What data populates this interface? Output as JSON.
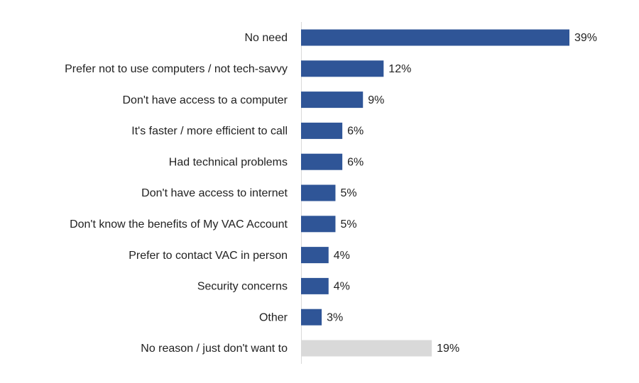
{
  "chart_data": {
    "type": "bar",
    "orientation": "horizontal",
    "categories": [
      "No need",
      "Prefer not to use computers / not tech-savvy",
      "Don't have access to a computer",
      "It's faster / more efficient to call",
      "Had technical problems",
      "Don't have access to internet",
      "Don't know the benefits of My VAC Account",
      "Prefer to contact VAC in person",
      "Security concerns",
      "Other",
      "No reason / just don't want to"
    ],
    "values": [
      39,
      12,
      9,
      6,
      6,
      5,
      5,
      4,
      4,
      3,
      19
    ],
    "value_labels": [
      "39%",
      "12%",
      "9%",
      "6%",
      "6%",
      "5%",
      "5%",
      "4%",
      "4%",
      "3%",
      "19%"
    ],
    "colors": [
      "#2f5597",
      "#2f5597",
      "#2f5597",
      "#2f5597",
      "#2f5597",
      "#2f5597",
      "#2f5597",
      "#2f5597",
      "#2f5597",
      "#2f5597",
      "#d9d9d9"
    ]
  }
}
